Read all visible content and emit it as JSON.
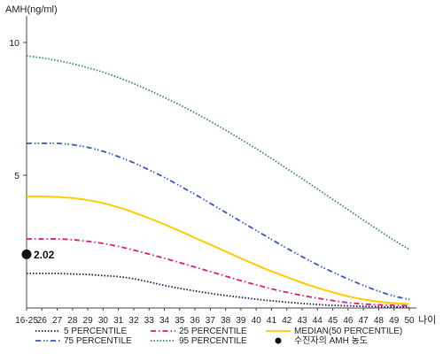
{
  "chart_data": {
    "type": "line",
    "ylabel": "AMH(ng/ml)",
    "xlabel": "나이",
    "ylim": [
      0,
      11
    ],
    "yticks": [
      {
        "value": 5,
        "label": "5"
      },
      {
        "value": 10,
        "label": "10"
      }
    ],
    "categories": [
      "16-25",
      "26",
      "27",
      "28",
      "29",
      "30",
      "31",
      "32",
      "33",
      "34",
      "35",
      "36",
      "37",
      "38",
      "39",
      "40",
      "41",
      "42",
      "43",
      "44",
      "45",
      "46",
      "47",
      "48",
      "49",
      "50"
    ],
    "series": [
      {
        "name": "5 PERCENTILE",
        "color": "#1a1a5a",
        "style": "dotted",
        "values": [
          1.3,
          1.3,
          1.3,
          1.28,
          1.26,
          1.22,
          1.18,
          1.1,
          0.98,
          0.85,
          0.74,
          0.64,
          0.55,
          0.47,
          0.4,
          0.33,
          0.27,
          0.22,
          0.17,
          0.13,
          0.1,
          0.08,
          0.06,
          0.05,
          0.04,
          0.03
        ]
      },
      {
        "name": "25 PERCENTILE",
        "color": "#e0187a",
        "style": "dashdot",
        "values": [
          2.6,
          2.6,
          2.6,
          2.57,
          2.51,
          2.43,
          2.32,
          2.18,
          2.03,
          1.87,
          1.71,
          1.54,
          1.37,
          1.2,
          1.03,
          0.87,
          0.72,
          0.59,
          0.47,
          0.37,
          0.28,
          0.2,
          0.15,
          0.12,
          0.1,
          0.08
        ]
      },
      {
        "name": "MEDIAN(50 PERCENTILE)",
        "color": "#ffcc00",
        "style": "solid",
        "values": [
          4.2,
          4.2,
          4.18,
          4.14,
          4.06,
          3.95,
          3.79,
          3.6,
          3.38,
          3.15,
          2.9,
          2.64,
          2.39,
          2.13,
          1.87,
          1.62,
          1.38,
          1.16,
          0.95,
          0.76,
          0.59,
          0.44,
          0.32,
          0.24,
          0.18,
          0.15
        ]
      },
      {
        "name": "75 PERCENTILE",
        "color": "#3355cc",
        "style": "dashdotdot",
        "values": [
          6.2,
          6.2,
          6.2,
          6.15,
          6.05,
          5.9,
          5.7,
          5.47,
          5.2,
          4.92,
          4.6,
          4.28,
          3.94,
          3.6,
          3.26,
          2.92,
          2.58,
          2.25,
          1.93,
          1.63,
          1.35,
          1.09,
          0.85,
          0.63,
          0.45,
          0.32
        ]
      },
      {
        "name": "95 PERCENTILE",
        "color": "#2e8b57",
        "style": "dotted",
        "values": [
          9.5,
          9.42,
          9.32,
          9.2,
          9.05,
          8.88,
          8.68,
          8.45,
          8.2,
          7.93,
          7.65,
          7.35,
          7.03,
          6.7,
          6.35,
          6.0,
          5.63,
          5.25,
          4.87,
          4.48,
          4.09,
          3.7,
          3.31,
          2.93,
          2.55,
          2.2
        ]
      }
    ],
    "marker": {
      "x": "16-25",
      "value": 2.02,
      "label": "2.02",
      "legend": "수진자의 AMH 농도"
    }
  }
}
